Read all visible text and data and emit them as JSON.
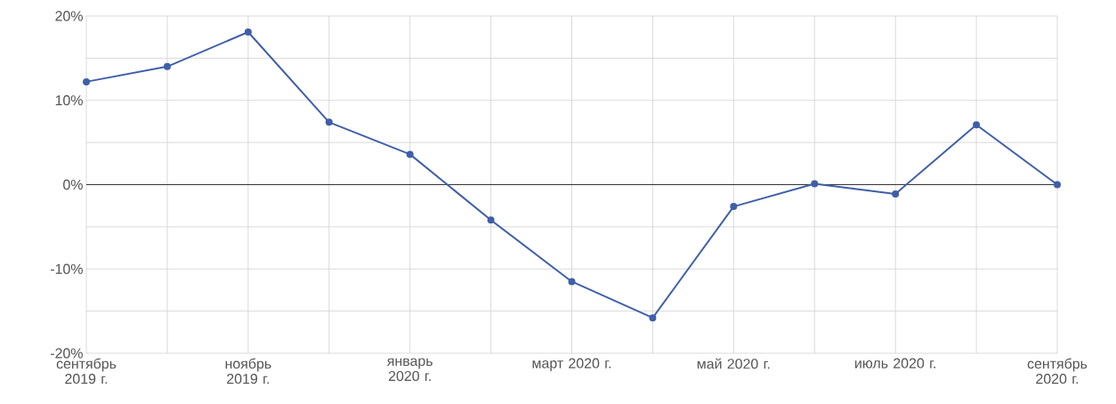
{
  "chart_data": {
    "type": "line",
    "categories": [
      "сентябрь 2019 г.",
      null,
      "ноябрь 2019 г.",
      null,
      "январь 2020 г.",
      null,
      "март 2020 г.",
      null,
      "май 2020 г.",
      null,
      "июль 2020 г.",
      null,
      "сентябрь 2020 г."
    ],
    "series": [
      {
        "color": "#3f5fa8",
        "values": [
          12.2,
          14.0,
          18.1,
          7.4,
          3.6,
          -4.2,
          -11.5,
          -15.8,
          -2.6,
          0.1,
          -1.1,
          7.1,
          0
        ]
      }
    ],
    "ylim": [
      -20,
      20
    ],
    "yticks": [
      {
        "value": -20,
        "label": "-20%"
      },
      {
        "value": -15,
        "label": null
      },
      {
        "value": -10,
        "label": "-10%"
      },
      {
        "value": -5,
        "label": null
      },
      {
        "value": 0,
        "label": "0%"
      },
      {
        "value": 5,
        "label": null
      },
      {
        "value": 10,
        "label": "10%"
      },
      {
        "value": 15,
        "label": null
      },
      {
        "value": 20,
        "label": "20%"
      }
    ],
    "ref_lines": [
      {
        "axis": "y",
        "value": 0,
        "color": "#333333"
      }
    ],
    "grid": true,
    "marker": "circle",
    "line_style": "solid"
  }
}
